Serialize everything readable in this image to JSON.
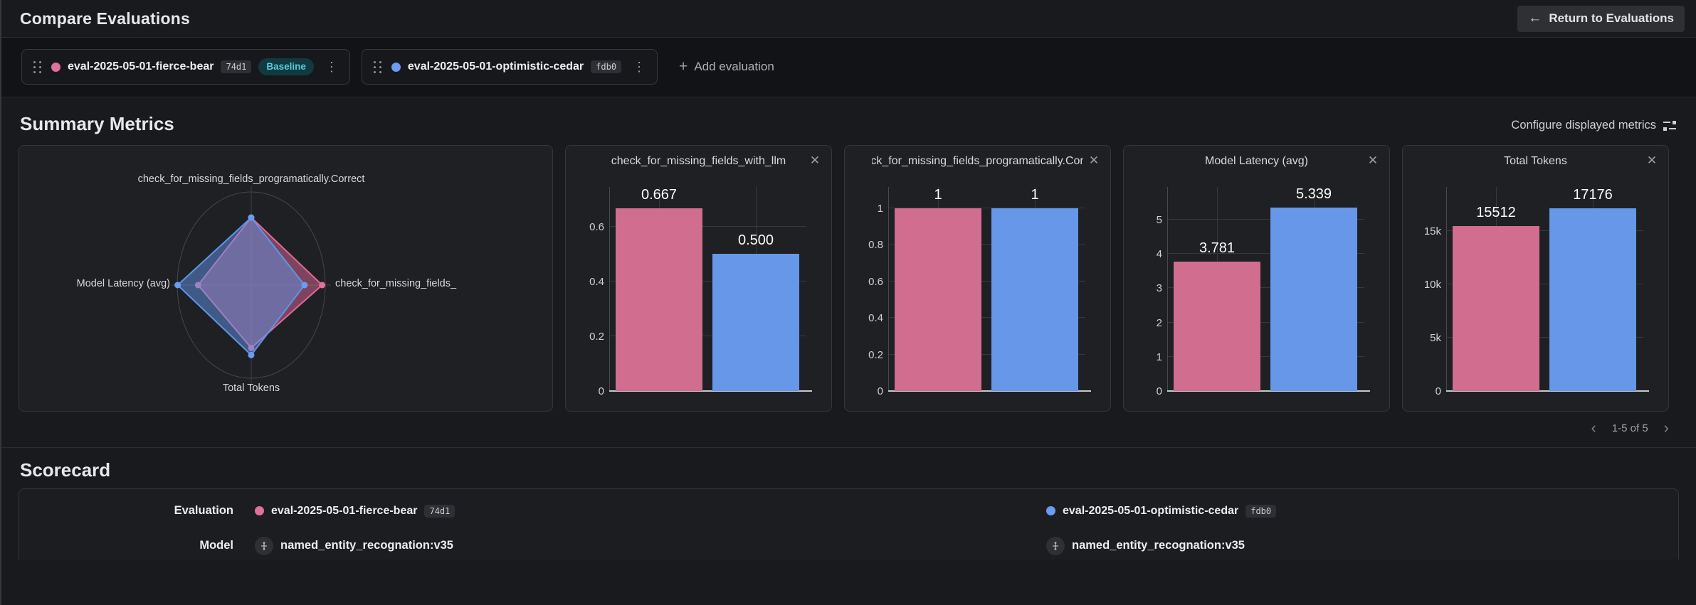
{
  "header": {
    "title": "Compare Evaluations",
    "return_label": "Return to Evaluations"
  },
  "evaluations": [
    {
      "name": "eval-2025-05-01-fierce-bear",
      "id_badge": "74d1",
      "color": "#e0709c",
      "baseline_label": "Baseline"
    },
    {
      "name": "eval-2025-05-01-optimistic-cedar",
      "id_badge": "fdb0",
      "color": "#6a9cf0"
    }
  ],
  "toolbar": {
    "add_evaluation_label": "Add evaluation"
  },
  "summary": {
    "title": "Summary Metrics",
    "configure_label": "Configure displayed metrics",
    "pagination_label": "1-5 of 5"
  },
  "icons": {
    "back_arrow": "←",
    "plus": "+",
    "kebab": "⋮",
    "close": "✕",
    "prev": "‹",
    "next": "›"
  },
  "chart_data": [
    {
      "type": "radar",
      "axis_labels": {
        "top": "check_for_missing_fields_programatically.Correct",
        "right": "check_for_missing_fields_",
        "bottom": "Total Tokens",
        "left": "Model Latency (avg)"
      },
      "grid": "single outer circle with cross axes",
      "series": [
        {
          "name": "eval-2025-05-01-fierce-bear",
          "color": "#e0689a",
          "fill": "rgba(224,104,150,0.5)",
          "dot": "#e0709c",
          "fractions": {
            "top": 0.725,
            "right": 0.958,
            "bottom": 0.675,
            "left": 0.718
          }
        },
        {
          "name": "eval-2025-05-01-optimistic-cedar",
          "color": "#6094e7",
          "fill": "rgba(96,148,231,0.5)",
          "dot": "#6a9cf0",
          "fractions": {
            "top": 0.725,
            "right": 0.72,
            "bottom": 0.751,
            "left": 0.994
          }
        }
      ]
    },
    {
      "type": "bar",
      "title": "check_for_missing_fields_with_llm",
      "categories": [
        "eval-2025-05-01-fierce-bear",
        "eval-2025-05-01-optimistic-cedar"
      ],
      "values": [
        0.667,
        0.5
      ],
      "labels": [
        "0.667",
        "0.500"
      ],
      "colors": [
        "#d16d8e",
        "#6697e8"
      ],
      "yticks": [
        {
          "v": 0,
          "label": "0"
        },
        {
          "v": 0.2,
          "label": "0.2"
        },
        {
          "v": 0.4,
          "label": "0.4"
        },
        {
          "v": 0.6,
          "label": "0.6"
        }
      ],
      "ylim": [
        0,
        0.744
      ]
    },
    {
      "type": "bar",
      "title": "check_for_missing_fields_programatically.Correct",
      "categories": [
        "eval-2025-05-01-fierce-bear",
        "eval-2025-05-01-optimistic-cedar"
      ],
      "values": [
        1,
        1
      ],
      "labels": [
        "1",
        "1"
      ],
      "colors": [
        "#d16d8e",
        "#6697e8"
      ],
      "yticks": [
        {
          "v": 0,
          "label": "0"
        },
        {
          "v": 0.2,
          "label": "0.2"
        },
        {
          "v": 0.4,
          "label": "0.4"
        },
        {
          "v": 0.6,
          "label": "0.6"
        },
        {
          "v": 0.8,
          "label": "0.8"
        },
        {
          "v": 1,
          "label": "1"
        }
      ],
      "ylim": [
        0,
        1.115
      ]
    },
    {
      "type": "bar",
      "title": "Model Latency (avg)",
      "categories": [
        "eval-2025-05-01-fierce-bear",
        "eval-2025-05-01-optimistic-cedar"
      ],
      "values": [
        3.781,
        5.339
      ],
      "labels": [
        "3.781",
        "5.339"
      ],
      "colors": [
        "#d16d8e",
        "#6697e8"
      ],
      "yticks": [
        {
          "v": 0,
          "label": "0"
        },
        {
          "v": 1,
          "label": "1"
        },
        {
          "v": 2,
          "label": "2"
        },
        {
          "v": 3,
          "label": "3"
        },
        {
          "v": 4,
          "label": "4"
        },
        {
          "v": 5,
          "label": "5"
        }
      ],
      "ylim": [
        0,
        5.95
      ]
    },
    {
      "type": "bar",
      "title": "Total Tokens",
      "categories": [
        "eval-2025-05-01-fierce-bear",
        "eval-2025-05-01-optimistic-cedar"
      ],
      "values": [
        15512,
        17176
      ],
      "labels": [
        "15512",
        "17176"
      ],
      "colors": [
        "#d16d8e",
        "#6697e8"
      ],
      "yticks": [
        {
          "v": 0,
          "label": "0"
        },
        {
          "v": 5000,
          "label": "5k"
        },
        {
          "v": 10000,
          "label": "10k"
        },
        {
          "v": 15000,
          "label": "15k"
        }
      ],
      "ylim": [
        0,
        19150
      ]
    }
  ],
  "scorecard": {
    "title": "Scorecard",
    "row_labels": {
      "evaluation": "Evaluation",
      "model": "Model"
    },
    "models": [
      "named_entity_recognation:v35",
      "named_entity_recognation:v35"
    ]
  }
}
